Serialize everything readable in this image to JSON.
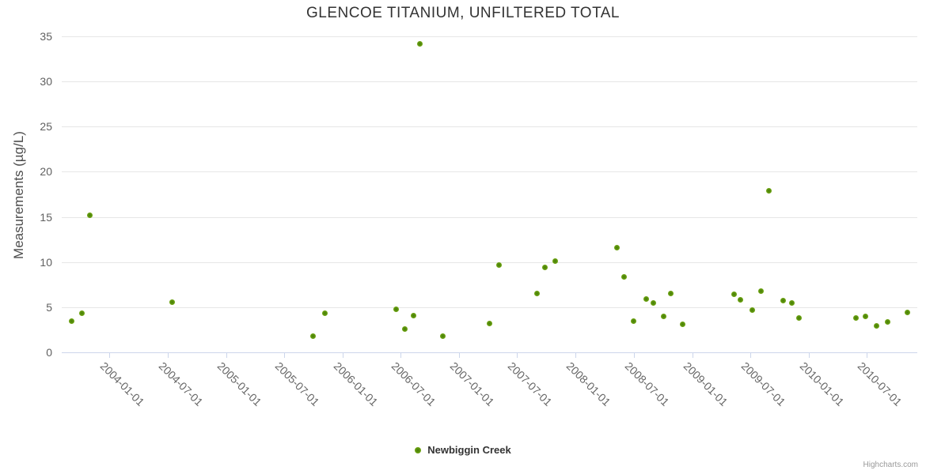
{
  "chart_data": {
    "type": "scatter",
    "title": "GLENCOE TITANIUM, UNFILTERED TOTAL",
    "xlabel": "",
    "ylabel": "Measurements (µg/L)",
    "ylim": [
      0,
      35
    ],
    "yticks": [
      0,
      5,
      10,
      15,
      20,
      25,
      30,
      35
    ],
    "xticks": [
      "2004-01-01",
      "2004-07-01",
      "2005-01-01",
      "2005-07-01",
      "2006-01-01",
      "2006-07-01",
      "2007-01-01",
      "2007-07-01",
      "2008-01-01",
      "2008-07-01",
      "2009-01-01",
      "2009-07-01",
      "2010-01-01",
      "2010-07-01"
    ],
    "x_range": [
      "2003-08-05",
      "2010-12-06"
    ],
    "grid": "horizontal",
    "legend_position": "bottom-center",
    "series": [
      {
        "name": "Newbiggin Creek",
        "color": "#7cb013",
        "data": [
          [
            "2003-09-06",
            3.5
          ],
          [
            "2003-10-06",
            4.3
          ],
          [
            "2003-11-02",
            15.2
          ],
          [
            "2004-07-17",
            5.6
          ],
          [
            "2005-09-30",
            1.8
          ],
          [
            "2005-11-06",
            4.3
          ],
          [
            "2006-06-17",
            4.8
          ],
          [
            "2006-07-15",
            2.6
          ],
          [
            "2006-08-11",
            4.1
          ],
          [
            "2006-08-30",
            34.2
          ],
          [
            "2006-11-10",
            1.8
          ],
          [
            "2007-04-05",
            3.2
          ],
          [
            "2007-05-05",
            9.7
          ],
          [
            "2007-09-01",
            6.5
          ],
          [
            "2007-09-27",
            9.4
          ],
          [
            "2007-10-29",
            10.1
          ],
          [
            "2008-05-10",
            11.6
          ],
          [
            "2008-05-31",
            8.4
          ],
          [
            "2008-07-01",
            3.5
          ],
          [
            "2008-08-09",
            5.9
          ],
          [
            "2008-09-01",
            5.5
          ],
          [
            "2008-10-03",
            4.0
          ],
          [
            "2008-10-25",
            6.5
          ],
          [
            "2008-11-30",
            3.1
          ],
          [
            "2009-05-11",
            6.4
          ],
          [
            "2009-05-30",
            5.8
          ],
          [
            "2009-07-06",
            4.7
          ],
          [
            "2009-08-04",
            6.8
          ],
          [
            "2009-08-28",
            17.9
          ],
          [
            "2009-10-11",
            5.7
          ],
          [
            "2009-11-08",
            5.5
          ],
          [
            "2009-11-30",
            3.8
          ],
          [
            "2010-05-29",
            3.8
          ],
          [
            "2010-06-27",
            4.0
          ],
          [
            "2010-08-01",
            2.9
          ],
          [
            "2010-09-05",
            3.4
          ],
          [
            "2010-11-06",
            4.4
          ]
        ]
      }
    ],
    "credits": "Highcharts.com"
  }
}
